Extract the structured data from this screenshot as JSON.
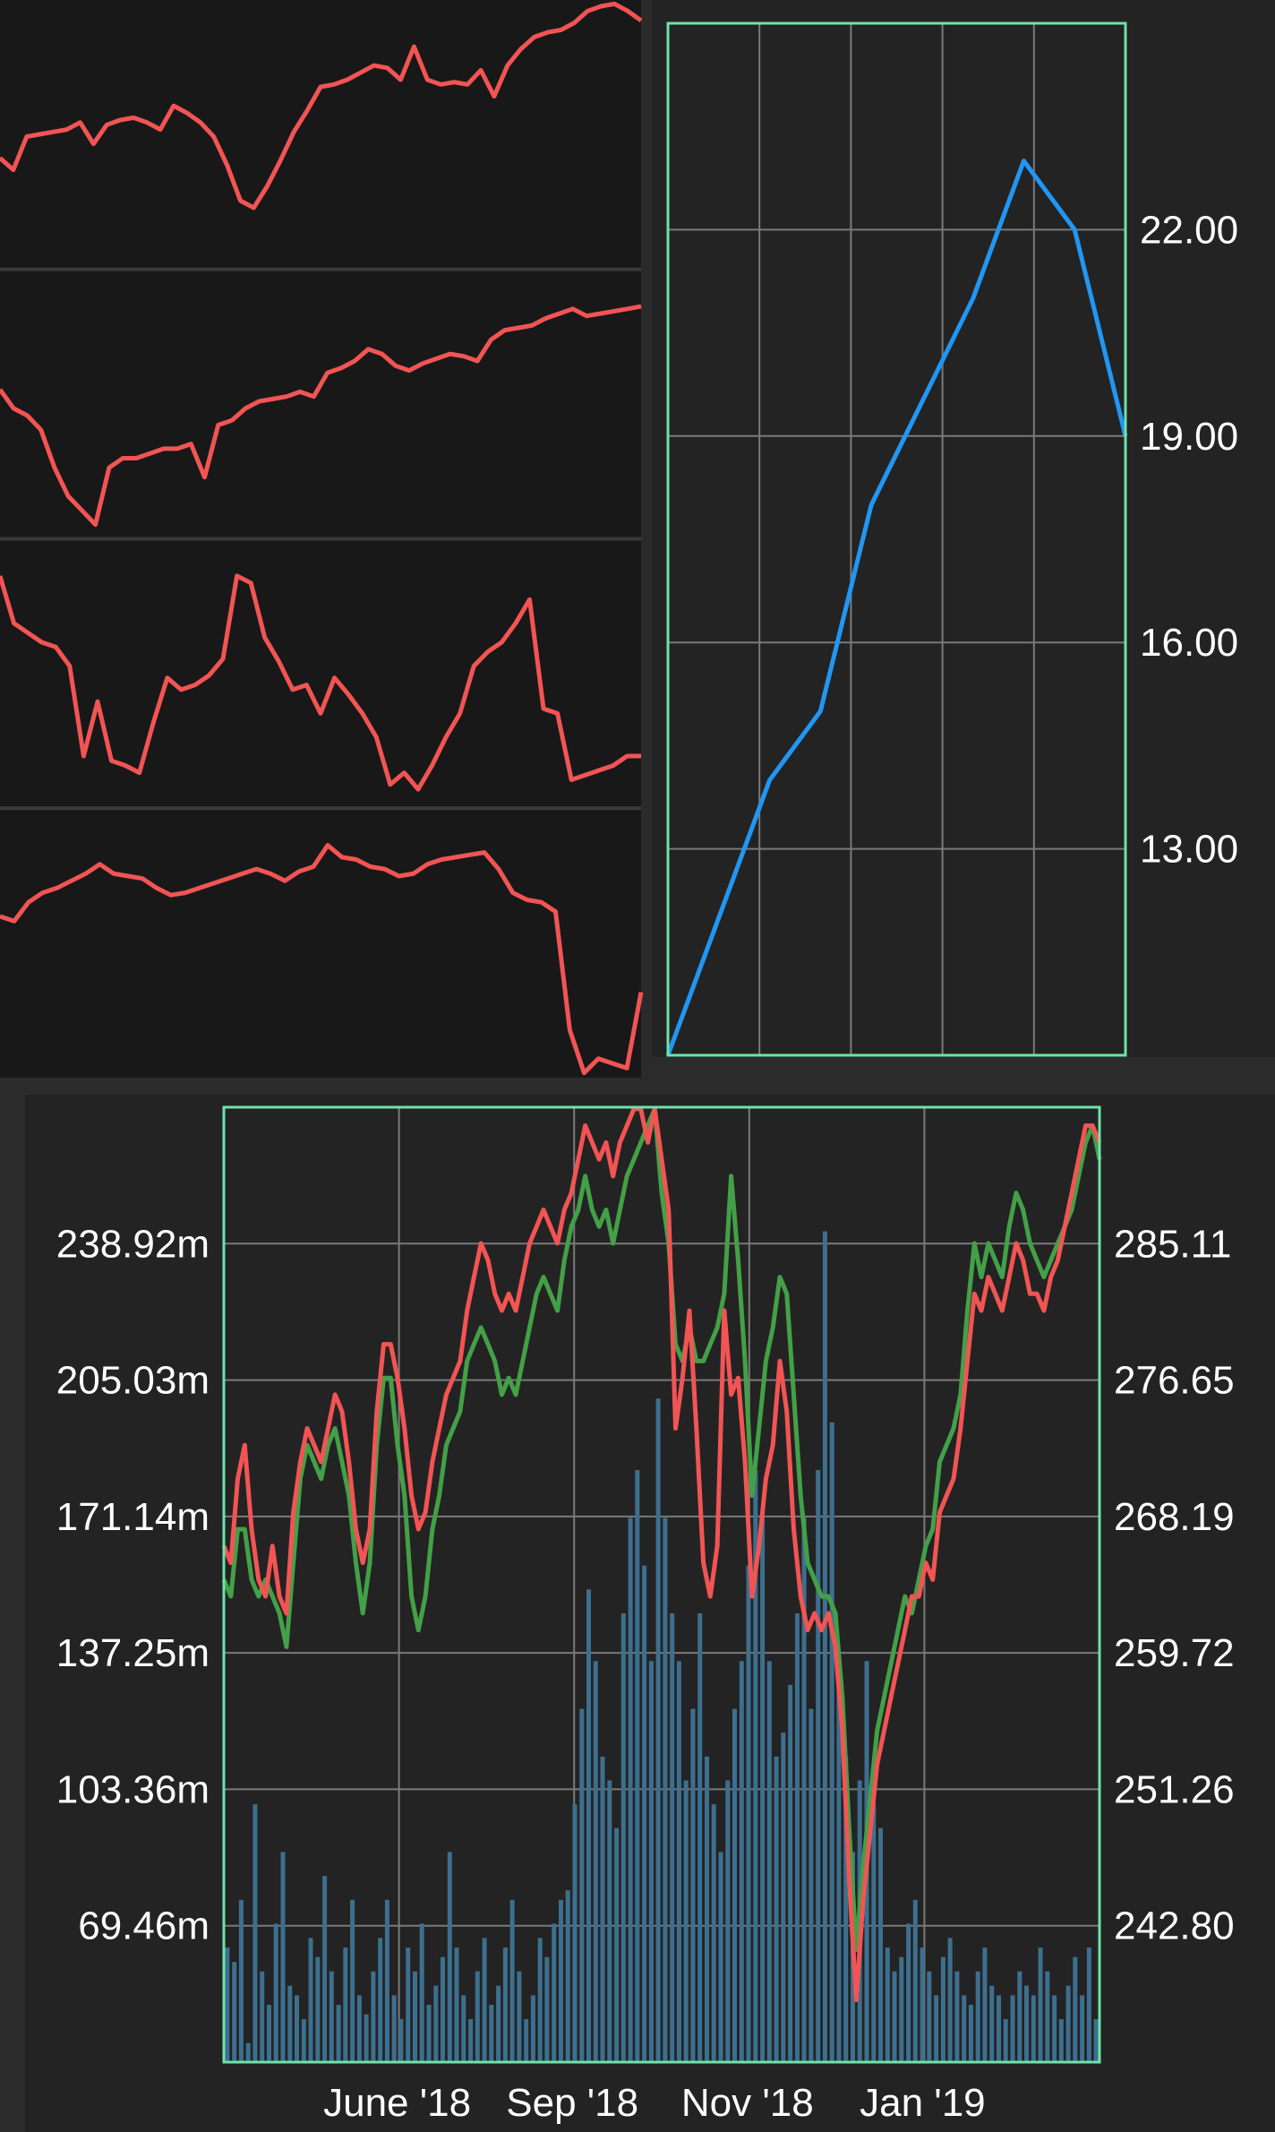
{
  "colors": {
    "page_bg": "#2b2b2b",
    "panel_bg": "#181818",
    "plot_bg": "#232323",
    "plot_border": "#6de3a7",
    "grid": "#7a7a7a",
    "sparkline": "#f25454",
    "blue_line": "#2196f3",
    "green_line": "#43a047",
    "red_line": "#f25454",
    "volume_bar": "#3d6f8f",
    "text": "#ffffff"
  },
  "chart_data": [
    {
      "id": "sparklines",
      "type": "line",
      "title": "",
      "series": [
        {
          "values": [
            0.47,
            0.42,
            0.56,
            0.57,
            0.58,
            0.59,
            0.62,
            0.53,
            0.61,
            0.63,
            0.64,
            0.62,
            0.59,
            0.69,
            0.66,
            0.62,
            0.56,
            0.44,
            0.29,
            0.26,
            0.35,
            0.46,
            0.58,
            0.67,
            0.77,
            0.78,
            0.8,
            0.83,
            0.86,
            0.85,
            0.8,
            0.94,
            0.8,
            0.78,
            0.79,
            0.78,
            0.84,
            0.73,
            0.86,
            0.93,
            0.98,
            1.0,
            1.01,
            1.04,
            1.09,
            1.11,
            1.12,
            1.09,
            1.05
          ]
        },
        {
          "values": [
            0.63,
            0.55,
            0.52,
            0.46,
            0.3,
            0.18,
            0.12,
            0.06,
            0.3,
            0.34,
            0.34,
            0.36,
            0.38,
            0.38,
            0.4,
            0.26,
            0.48,
            0.5,
            0.55,
            0.58,
            0.59,
            0.6,
            0.62,
            0.6,
            0.7,
            0.72,
            0.75,
            0.8,
            0.78,
            0.73,
            0.71,
            0.74,
            0.76,
            0.78,
            0.77,
            0.75,
            0.84,
            0.88,
            0.89,
            0.9,
            0.93,
            0.95,
            0.97,
            0.94,
            0.95,
            0.96,
            0.97,
            0.98
          ]
        },
        {
          "values": [
            0.98,
            0.78,
            0.74,
            0.7,
            0.68,
            0.6,
            0.22,
            0.45,
            0.2,
            0.18,
            0.15,
            0.36,
            0.55,
            0.5,
            0.52,
            0.56,
            0.63,
            0.98,
            0.95,
            0.72,
            0.62,
            0.5,
            0.52,
            0.4,
            0.55,
            0.48,
            0.4,
            0.3,
            0.1,
            0.15,
            0.08,
            0.18,
            0.3,
            0.4,
            0.6,
            0.66,
            0.7,
            0.78,
            0.88,
            0.42,
            0.4,
            0.12,
            0.14,
            0.16,
            0.18,
            0.22,
            0.22
          ]
        },
        {
          "values": [
            0.68,
            0.66,
            0.74,
            0.78,
            0.8,
            0.83,
            0.86,
            0.9,
            0.86,
            0.85,
            0.84,
            0.8,
            0.77,
            0.78,
            0.8,
            0.82,
            0.84,
            0.86,
            0.88,
            0.86,
            0.83,
            0.87,
            0.89,
            0.98,
            0.93,
            0.92,
            0.89,
            0.88,
            0.85,
            0.86,
            0.9,
            0.92,
            0.93,
            0.94,
            0.95,
            0.88,
            0.78,
            0.75,
            0.74,
            0.7,
            0.2,
            0.02,
            0.08,
            0.06,
            0.04,
            0.36
          ]
        }
      ]
    },
    {
      "id": "price_chart",
      "type": "line",
      "title": "",
      "x": [
        0,
        1,
        2,
        3,
        4,
        5,
        6,
        7,
        8,
        9
      ],
      "y_ticks": [
        "22.00",
        "19.00",
        "16.00",
        "13.00"
      ],
      "ylim": [
        10,
        25
      ],
      "grid": true,
      "series": [
        {
          "values": [
            10.0,
            12.0,
            14.0,
            15.0,
            18.0,
            19.5,
            21.0,
            23.0,
            22.0,
            19.0
          ]
        }
      ]
    },
    {
      "id": "market_chart",
      "type": "line",
      "title": "",
      "x_ticks": [
        "June '18",
        "Sep '18",
        "Nov '18",
        "Jan '19"
      ],
      "y_left_ticks": [
        "238.92m",
        "205.03m",
        "171.14m",
        "137.25m",
        "103.36m",
        "69.46m"
      ],
      "y_right_ticks": [
        "285.11",
        "276.65",
        "268.19",
        "259.72",
        "251.26",
        "242.80"
      ],
      "ylim_left": [
        36,
        236
      ],
      "ylim_right": [
        234.3,
        291.1
      ],
      "grid": true,
      "series": [
        {
          "name": "",
          "color_key": "green_line",
          "values": [
            263,
            262,
            266,
            266,
            263,
            262,
            263,
            262,
            261,
            259,
            264,
            269,
            271,
            270,
            269,
            271,
            272,
            270,
            268,
            264,
            261,
            264,
            271,
            275,
            275,
            271,
            268,
            262,
            260,
            262,
            266,
            268,
            271,
            272,
            273,
            276,
            277,
            278,
            277,
            276,
            274,
            275,
            274,
            276,
            278,
            280,
            281,
            280,
            279,
            282,
            284,
            285,
            287,
            285,
            284,
            285,
            283,
            285,
            287,
            288,
            289,
            290,
            291,
            286,
            283,
            277,
            276,
            278,
            276,
            276,
            277,
            278,
            280,
            287,
            282,
            276,
            268,
            272,
            276,
            278,
            281,
            280,
            274,
            268,
            264,
            263,
            262,
            262,
            261,
            256,
            248,
            241,
            246,
            250,
            254,
            256,
            258,
            260,
            262,
            261,
            263,
            265,
            266,
            270,
            271,
            272,
            274,
            279,
            283,
            281,
            283,
            282,
            281,
            284,
            286,
            285,
            283,
            282,
            281,
            282,
            283,
            284,
            285,
            287,
            289,
            290,
            288
          ]
        },
        {
          "name": "",
          "color_key": "red_line",
          "values": [
            265,
            264,
            269,
            271,
            266,
            263,
            262,
            265,
            262,
            261,
            267,
            270,
            272,
            271,
            270,
            272,
            274,
            273,
            270,
            266,
            264,
            266,
            273,
            277,
            277,
            275,
            272,
            268,
            266,
            267,
            270,
            272,
            274,
            275,
            276,
            279,
            281,
            283,
            282,
            280,
            279,
            280,
            279,
            281,
            283,
            284,
            285,
            284,
            283,
            285,
            286,
            288,
            290,
            289,
            288,
            289,
            287,
            289,
            290,
            291,
            291,
            289,
            291,
            288,
            285,
            272,
            275,
            279,
            272,
            264,
            262,
            265,
            279,
            274,
            275,
            270,
            262,
            265,
            269,
            271,
            276,
            273,
            266,
            262,
            260,
            261,
            260,
            261,
            259,
            254,
            245,
            238,
            244,
            248,
            252,
            254,
            256,
            258,
            260,
            262,
            262,
            264,
            263,
            267,
            268,
            269,
            272,
            276,
            280,
            279,
            281,
            280,
            279,
            281,
            283,
            282,
            280,
            280,
            279,
            281,
            282,
            284,
            286,
            288,
            290,
            290,
            289
          ]
        },
        {
          "name": "",
          "type": "bar",
          "color_key": "volume_bar",
          "axis": "left",
          "values": [
            60,
            57,
            70,
            40,
            90,
            55,
            48,
            65,
            80,
            52,
            50,
            45,
            62,
            58,
            75,
            55,
            48,
            60,
            70,
            50,
            46,
            55,
            62,
            70,
            50,
            45,
            60,
            55,
            65,
            48,
            52,
            58,
            80,
            60,
            50,
            45,
            55,
            62,
            48,
            52,
            60,
            70,
            55,
            45,
            50,
            62,
            58,
            65,
            70,
            72,
            90,
            110,
            135,
            120,
            100,
            95,
            85,
            130,
            150,
            160,
            140,
            120,
            175,
            150,
            130,
            120,
            95,
            110,
            130,
            100,
            90,
            80,
            95,
            110,
            120,
            140,
            160,
            150,
            120,
            100,
            105,
            115,
            130,
            150,
            110,
            160,
            210,
            170,
            120,
            100,
            80,
            95,
            120,
            90,
            85,
            60,
            55,
            58,
            65,
            70,
            60,
            55,
            50,
            58,
            62,
            55,
            50,
            48,
            55,
            60,
            52,
            50,
            45,
            50,
            55,
            52,
            50,
            60,
            55,
            50,
            45,
            52,
            58,
            50,
            60,
            45
          ]
        }
      ]
    }
  ]
}
